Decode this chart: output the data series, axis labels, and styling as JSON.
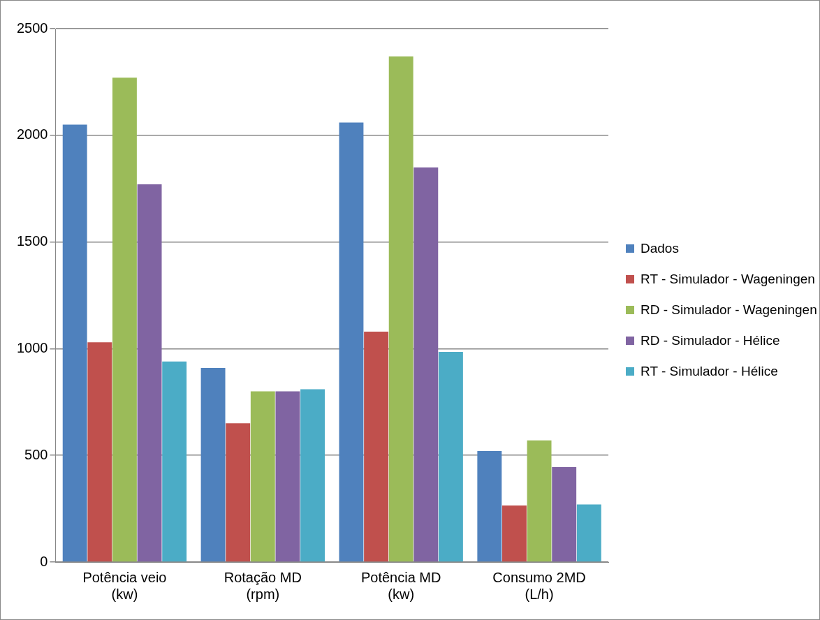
{
  "chart_data": {
    "type": "bar",
    "categories": [
      "Potência veio (kw)",
      "Rotação MD (rpm)",
      "Potência MD (kw)",
      "Consumo 2MD (L/h)"
    ],
    "series": [
      {
        "name": "Dados",
        "color": "#4f81bd",
        "values": [
          2050,
          910,
          2060,
          520
        ]
      },
      {
        "name": "RT - Simulador - Wageningen",
        "color": "#c0504d",
        "values": [
          1030,
          650,
          1080,
          265
        ]
      },
      {
        "name": "RD - Simulador - Wageningen",
        "color": "#9bbb59",
        "values": [
          2270,
          800,
          2370,
          570
        ]
      },
      {
        "name": "RD - Simulador - Hélice",
        "color": "#8064a2",
        "values": [
          1770,
          800,
          1850,
          445
        ]
      },
      {
        "name": "RT - Simulador - Hélice",
        "color": "#4bacc6",
        "values": [
          940,
          810,
          985,
          270
        ]
      }
    ],
    "ylim": [
      0,
      2500
    ],
    "yticks": [
      0,
      500,
      1000,
      1500,
      2000,
      2500
    ],
    "grid": "y",
    "legend": "right"
  }
}
